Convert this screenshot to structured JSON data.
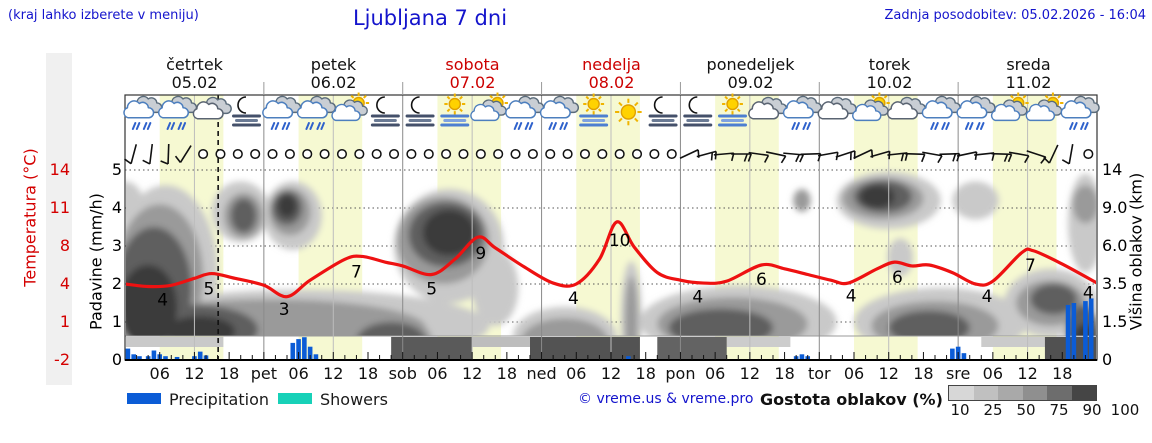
{
  "header": {
    "hint": "(kraj lahko izberete v meniju)",
    "title": "Ljubljana 7 dni",
    "updated": "Zadnja posodobitev: 05.02.2026 - 16:04"
  },
  "colors": {
    "blue_text": "#1414cc",
    "temp_axis_red": "#d40000",
    "curve_red": "#ee1111",
    "day_band": "#f6f9d2",
    "precip_blue": "#0b5cd6",
    "showers_teal": "#17d1b8",
    "left_strip_gray": "#f0f0f0"
  },
  "axes": {
    "temp": {
      "label": "Temperatura (°C)",
      "ticks": [
        "14",
        "11",
        "8",
        "4",
        "1",
        "-2"
      ]
    },
    "precip": {
      "label": "Padavine (mm/h)",
      "ticks": [
        "5",
        "4",
        "3",
        "2",
        "1",
        "0"
      ]
    },
    "cloud_height": {
      "label": "Višina oblakov (km)",
      "ticks": [
        "14",
        "9.0",
        "6.0",
        "3.5",
        "1.5",
        "0"
      ]
    }
  },
  "legend": {
    "precipitation": "Precipitation",
    "showers": "Showers",
    "copyright": "© vreme.us & vreme.pro",
    "cloud_density_label": "Gostota oblakov (%)",
    "density_ticks": [
      "10",
      "25",
      "50",
      "75",
      "90",
      "100"
    ],
    "density_colors": [
      "#d7d7d7",
      "#c0c0c0",
      "#a9a9a9",
      "#8f8f8f",
      "#6d6d6d",
      "#454545"
    ]
  },
  "chart_data": {
    "type": "meteogram",
    "x_unit": "hours from 05.02 00:00, 7 days, 24h each",
    "days": [
      {
        "name": "četrtek",
        "date": "05.02",
        "red": false
      },
      {
        "name": "petek",
        "date": "06.02",
        "red": false
      },
      {
        "name": "sobota",
        "date": "07.02",
        "red": true
      },
      {
        "name": "nedelja",
        "date": "08.02",
        "red": true
      },
      {
        "name": "ponedeljek",
        "date": "09.02",
        "red": false
      },
      {
        "name": "torek",
        "date": "10.02",
        "red": false
      },
      {
        "name": "sreda",
        "date": "11.02",
        "red": false
      }
    ],
    "x_hour_labels": [
      "06",
      "12",
      "18"
    ],
    "x_day_abbrs": [
      "pet",
      "sob",
      "ned",
      "pon",
      "tor",
      "sre"
    ],
    "day_band_hours": [
      6,
      17
    ],
    "current_time_h": 16.1,
    "temperature_series": [
      [
        0,
        4.0
      ],
      [
        4,
        3.8
      ],
      [
        8,
        3.9
      ],
      [
        12,
        4.6
      ],
      [
        15,
        5.1
      ],
      [
        19,
        4.6
      ],
      [
        24,
        3.9
      ],
      [
        28,
        3.0
      ],
      [
        32,
        4.4
      ],
      [
        38,
        6.6
      ],
      [
        41,
        6.9
      ],
      [
        45,
        6.3
      ],
      [
        48,
        5.9
      ],
      [
        53,
        5.0
      ],
      [
        57,
        6.6
      ],
      [
        61,
        8.7
      ],
      [
        64,
        7.8
      ],
      [
        69,
        5.8
      ],
      [
        74,
        4.1
      ],
      [
        78,
        4.0
      ],
      [
        82,
        6.6
      ],
      [
        85,
        9.9
      ],
      [
        88,
        7.9
      ],
      [
        92,
        5.2
      ],
      [
        96,
        4.4
      ],
      [
        100,
        4.1
      ],
      [
        104,
        4.3
      ],
      [
        110,
        6.0
      ],
      [
        114,
        5.6
      ],
      [
        118,
        5.0
      ],
      [
        122,
        4.4
      ],
      [
        125,
        4.1
      ],
      [
        130,
        5.6
      ],
      [
        133,
        6.3
      ],
      [
        136,
        5.9
      ],
      [
        139,
        6.0
      ],
      [
        143,
        5.2
      ],
      [
        147,
        4.0
      ],
      [
        150,
        4.3
      ],
      [
        155,
        7.3
      ],
      [
        157,
        7.5
      ],
      [
        162,
        6.1
      ],
      [
        168,
        4.1
      ]
    ],
    "temperature_labels": [
      [
        6.5,
        "4"
      ],
      [
        14.5,
        "5"
      ],
      [
        27.5,
        "3"
      ],
      [
        40,
        "7"
      ],
      [
        53,
        "5"
      ],
      [
        61.5,
        "9"
      ],
      [
        77.5,
        "4"
      ],
      [
        85.5,
        "10"
      ],
      [
        99,
        "4"
      ],
      [
        110,
        "6"
      ],
      [
        125.5,
        "4"
      ],
      [
        133.5,
        "6"
      ],
      [
        149,
        "4"
      ],
      [
        156.5,
        "7"
      ],
      [
        166.5,
        "4"
      ]
    ],
    "precip_bars_h_units": [
      [
        0.5,
        0.3
      ],
      [
        1.5,
        0.15
      ],
      [
        2.5,
        0.1
      ],
      [
        4,
        0.1
      ],
      [
        5,
        0.25
      ],
      [
        6,
        0.15
      ],
      [
        7,
        0.1
      ],
      [
        9,
        0.08
      ],
      [
        12,
        0.1
      ],
      [
        13,
        0.22
      ],
      [
        14,
        0.12
      ],
      [
        29,
        0.45
      ],
      [
        30,
        0.55
      ],
      [
        31,
        0.6
      ],
      [
        32,
        0.35
      ],
      [
        33,
        0.15
      ],
      [
        87,
        0.1
      ],
      [
        116,
        0.1
      ],
      [
        117,
        0.15
      ],
      [
        118,
        0.1
      ],
      [
        143,
        0.3
      ],
      [
        144,
        0.35
      ],
      [
        145,
        0.18
      ],
      [
        163,
        1.45
      ],
      [
        164,
        1.5
      ],
      [
        166,
        1.55
      ],
      [
        167,
        1.62
      ]
    ],
    "weather_icons_6h": [
      "rain",
      "rain",
      "cloud",
      "moonfog",
      "rain",
      "rain",
      "cloudsun",
      "moonfog",
      "moonfog",
      "sunfog",
      "cloudsun",
      "rain",
      "rain",
      "sunfog",
      "sun",
      "moonfog",
      "moonfog",
      "sunfog",
      "cloud",
      "rain",
      "cloud",
      "cloudsun",
      "cloud",
      "rain",
      "rain",
      "cloudsun",
      "cloudsun",
      "rain"
    ],
    "wind_3h": [
      "b75",
      "b83",
      "b88",
      "b58",
      "c",
      "c",
      "c",
      "c",
      "c",
      "c",
      "c",
      "c",
      "c",
      "c",
      "c",
      "c",
      "c",
      "c",
      "c",
      "c",
      "c",
      "c",
      "c",
      "c",
      "c",
      "c",
      "c",
      "c",
      "c",
      "c",
      "c",
      "c",
      "b205",
      "b195f2",
      "b185",
      "b180f2",
      "b172",
      "b168",
      "b175f2",
      "b182",
      "b190",
      "b198f2",
      "b205",
      "b196",
      "b186f2",
      "b178",
      "b170",
      "b182f2",
      "b192",
      "b186",
      "b178f2",
      "b170",
      "b162",
      "b65",
      "b80",
      "c"
    ],
    "cloud_blobs_light": [
      [
        7,
        2.3,
        9,
        2.3
      ],
      [
        30,
        0.9,
        33,
        0.95
      ],
      [
        20,
        3.9,
        5,
        0.8
      ],
      [
        29,
        3.8,
        5,
        0.9
      ],
      [
        56,
        3.0,
        9.5,
        1.5
      ],
      [
        64,
        1.9,
        4,
        1.0
      ],
      [
        76,
        0.6,
        9,
        0.8
      ],
      [
        87.5,
        1.1,
        1.8,
        1.5
      ],
      [
        106,
        1.0,
        17,
        0.95
      ],
      [
        132,
        4.2,
        9,
        0.75
      ],
      [
        134,
        2.7,
        2.2,
        0.5
      ],
      [
        141,
        1.0,
        15,
        0.9
      ],
      [
        160,
        1.5,
        8,
        0.9
      ],
      [
        166,
        3.6,
        3,
        1.3
      ],
      [
        147,
        4.2,
        4,
        0.5
      ],
      [
        0,
        4.2,
        3,
        0.5
      ]
    ],
    "cloud_blobs_mid": [
      [
        6,
        2.2,
        7.5,
        1.9
      ],
      [
        25,
        0.85,
        27,
        0.75
      ],
      [
        20.5,
        3.8,
        3.4,
        0.6
      ],
      [
        28.5,
        3.9,
        3.6,
        0.62
      ],
      [
        55,
        3.15,
        8,
        1.15
      ],
      [
        45,
        0.55,
        8,
        0.62
      ],
      [
        76,
        0.5,
        7.5,
        0.6
      ],
      [
        105,
        0.95,
        13,
        0.7
      ],
      [
        131,
        4.25,
        7,
        0.55
      ],
      [
        140,
        0.9,
        11,
        0.65
      ],
      [
        160,
        1.5,
        6,
        0.6
      ],
      [
        166,
        4.1,
        2.2,
        0.5
      ],
      [
        87.5,
        1.0,
        1.1,
        1.2
      ],
      [
        117,
        4.2,
        1.5,
        0.3
      ]
    ],
    "cloud_blobs_dark": [
      [
        5,
        1.9,
        6.5,
        1.6
      ],
      [
        12,
        0.8,
        11,
        0.65
      ],
      [
        20.5,
        3.8,
        2.2,
        0.45
      ],
      [
        28,
        4.0,
        2.6,
        0.45
      ],
      [
        55.5,
        3.3,
        6.5,
        0.85
      ],
      [
        46,
        0.5,
        6,
        0.5
      ],
      [
        103,
        0.85,
        9,
        0.5
      ],
      [
        131,
        4.3,
        5,
        0.42
      ],
      [
        139,
        0.85,
        7,
        0.45
      ],
      [
        165.5,
        0.7,
        2.8,
        0.75
      ],
      [
        160.5,
        1.6,
        4,
        0.4
      ]
    ],
    "cloud_blobs_darkest": [
      [
        4,
        1.4,
        5,
        1.1
      ],
      [
        56,
        3.35,
        4.5,
        0.6
      ],
      [
        28,
        4.05,
        1.6,
        0.3
      ],
      [
        130,
        4.3,
        3,
        0.3
      ],
      [
        165.8,
        0.45,
        2,
        0.5
      ],
      [
        13,
        0.75,
        6,
        0.4
      ]
    ],
    "ground_strips_shallow": [
      [
        0,
        17,
        "#c9c9c9"
      ],
      [
        60,
        70,
        "#bdbdbd"
      ],
      [
        104,
        115,
        "#cccccc"
      ],
      [
        148,
        159,
        "#cbcbcb"
      ]
    ],
    "ground_strips_deep": [
      [
        46,
        60,
        "#5a5a5a"
      ],
      [
        70,
        89,
        "#535353"
      ],
      [
        92,
        104,
        "#636363"
      ],
      [
        159,
        168,
        "#515151"
      ]
    ]
  }
}
